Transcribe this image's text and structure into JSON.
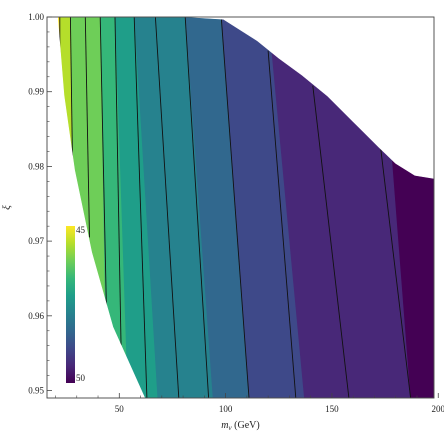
{
  "chart_data": {
    "type": "heatmap",
    "title": "",
    "xlabel": "m_ν (GeV)",
    "xlabel_main": "m",
    "xlabel_sub": "ν",
    "xlabel_unit": " (GeV)",
    "ylabel": "ξ",
    "xlim": [
      16,
      198
    ],
    "ylim": [
      0.949,
      1.0
    ],
    "x_ticks": [
      {
        "value": 50,
        "label": "50"
      },
      {
        "value": 100,
        "label": "100"
      },
      {
        "value": 150,
        "label": "150"
      },
      {
        "value": 200,
        "label": "200"
      }
    ],
    "y_ticks": [
      {
        "value": 0.95,
        "label": "0.95"
      },
      {
        "value": 0.96,
        "label": "0.96"
      },
      {
        "value": 0.97,
        "label": "0.97"
      },
      {
        "value": 0.98,
        "label": "0.98"
      },
      {
        "value": 0.99,
        "label": "0.99"
      },
      {
        "value": 1.0,
        "label": "1.00"
      }
    ],
    "colorbar": {
      "min_label": "45",
      "max_label": "50",
      "min": 45,
      "max": 50,
      "placement": "inside-left"
    },
    "region_boundary": [
      {
        "x": 21,
        "y": 1.0
      },
      {
        "x": 82,
        "y": 1.0
      },
      {
        "x": 99,
        "y": 0.9997
      },
      {
        "x": 115,
        "y": 0.9968
      },
      {
        "x": 125,
        "y": 0.9945
      },
      {
        "x": 136,
        "y": 0.9922
      },
      {
        "x": 148,
        "y": 0.9894
      },
      {
        "x": 160,
        "y": 0.986
      },
      {
        "x": 172,
        "y": 0.9826
      },
      {
        "x": 180,
        "y": 0.9804
      },
      {
        "x": 189,
        "y": 0.9788
      },
      {
        "x": 198,
        "y": 0.9784
      },
      {
        "x": 198,
        "y": 0.949
      },
      {
        "x": 62,
        "y": 0.949
      },
      {
        "x": 47,
        "y": 0.9585
      },
      {
        "x": 37,
        "y": 0.9685
      },
      {
        "x": 29,
        "y": 0.9795
      },
      {
        "x": 24,
        "y": 0.9895
      },
      {
        "x": 21,
        "y": 1.0
      }
    ],
    "contour_lines": [
      {
        "top": {
          "x": 22,
          "y": 1.0
        },
        "bottom": {
          "x": 22,
          "y": 0.9915
        }
      },
      {
        "top": {
          "x": 27,
          "y": 1.0
        },
        "bottom": {
          "x": 28,
          "y": 0.9805
        }
      },
      {
        "top": {
          "x": 34,
          "y": 1.0
        },
        "bottom": {
          "x": 36,
          "y": 0.9705
        }
      },
      {
        "top": {
          "x": 41,
          "y": 1.0
        },
        "bottom": {
          "x": 44,
          "y": 0.9605
        }
      },
      {
        "top": {
          "x": 48,
          "y": 1.0
        },
        "bottom": {
          "x": 51,
          "y": 0.9535
        }
      },
      {
        "top": {
          "x": 57,
          "y": 1.0
        },
        "bottom": {
          "x": 63,
          "y": 0.949
        }
      },
      {
        "top": {
          "x": 67,
          "y": 1.0
        },
        "bottom": {
          "x": 78,
          "y": 0.949
        }
      },
      {
        "top": {
          "x": 81,
          "y": 1.0
        },
        "bottom": {
          "x": 92,
          "y": 0.949
        }
      },
      {
        "top": {
          "x": 98,
          "y": 0.9997
        },
        "bottom": {
          "x": 111,
          "y": 0.949
        }
      },
      {
        "top": {
          "x": 120,
          "y": 0.9955
        },
        "bottom": {
          "x": 133,
          "y": 0.949
        }
      },
      {
        "top": {
          "x": 141,
          "y": 0.9908
        },
        "bottom": {
          "x": 158,
          "y": 0.949
        }
      },
      {
        "top": {
          "x": 173,
          "y": 0.9823
        },
        "bottom": {
          "x": 187,
          "y": 0.949
        }
      }
    ],
    "colormap": [
      "#fde725",
      "#b5de2b",
      "#6ece58",
      "#35b779",
      "#1f9e89",
      "#26828e",
      "#31688e",
      "#3e4989",
      "#482878",
      "#440154"
    ]
  }
}
